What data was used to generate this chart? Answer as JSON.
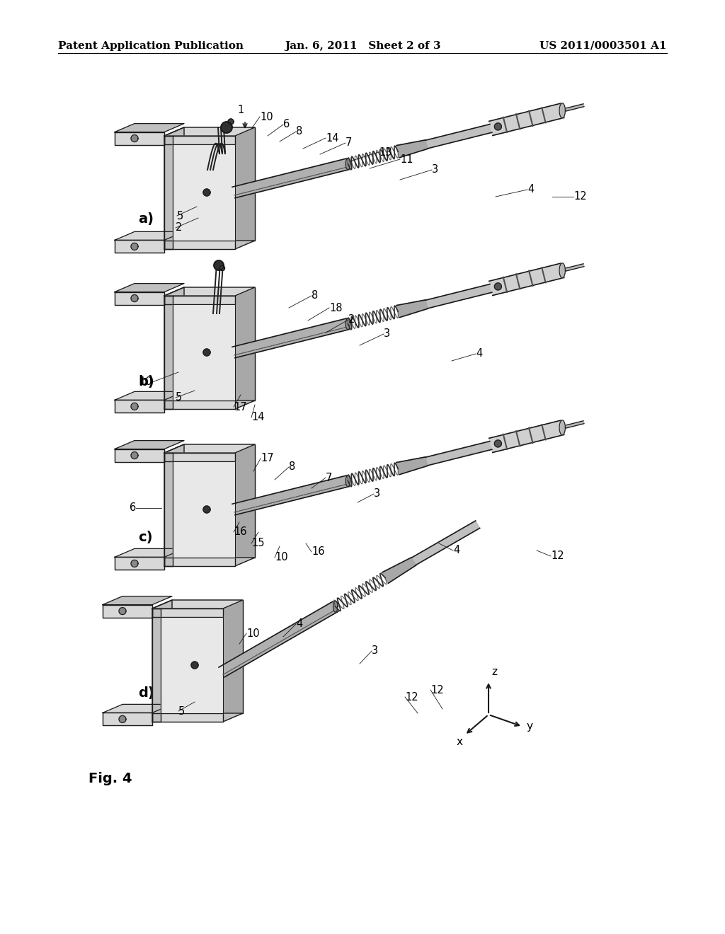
{
  "background_color": "#ffffff",
  "fig_width": 10.24,
  "fig_height": 13.2,
  "dpi": 100,
  "header_left": "Patent Application Publication",
  "header_center": "Jan. 6, 2011   Sheet 2 of 3",
  "header_right": "US 2011/0003501 A1",
  "figure_caption": "Fig. 4",
  "subfig_labels": [
    "a)",
    "b)",
    "c)",
    "d)"
  ],
  "annotation_fontsize": 10.5
}
